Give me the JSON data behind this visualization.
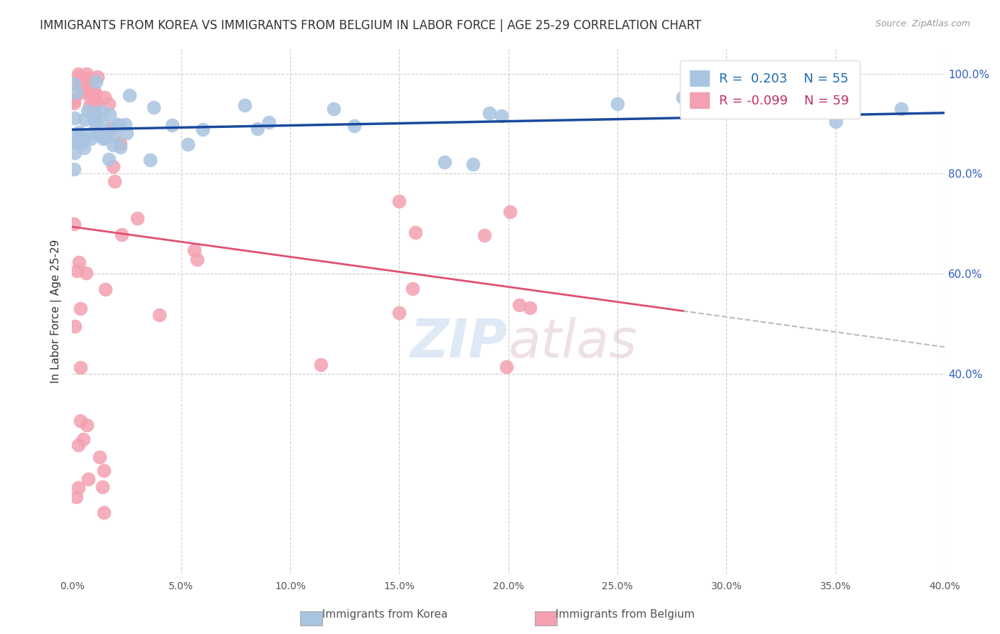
{
  "title": "IMMIGRANTS FROM KOREA VS IMMIGRANTS FROM BELGIUM IN LABOR FORCE | AGE 25-29 CORRELATION CHART",
  "source": "Source: ZipAtlas.com",
  "ylabel": "In Labor Force | Age 25-29",
  "xlim": [
    0.0,
    0.4
  ],
  "ylim": [
    0.0,
    1.05
  ],
  "xtick_labels": [
    "0.0%",
    "5.0%",
    "10.0%",
    "15.0%",
    "20.0%",
    "25.0%",
    "30.0%",
    "35.0%",
    "40.0%"
  ],
  "xtick_vals": [
    0.0,
    0.05,
    0.1,
    0.15,
    0.2,
    0.25,
    0.3,
    0.35,
    0.4
  ],
  "ytick_labels_right": [
    "100.0%",
    "80.0%",
    "60.0%",
    "40.0%"
  ],
  "ytick_vals_right": [
    1.0,
    0.8,
    0.6,
    0.4
  ],
  "legend_korea_r": "0.203",
  "legend_korea_n": "55",
  "legend_belgium_r": "-0.099",
  "legend_belgium_n": "59",
  "korea_color": "#a8c4e0",
  "belgium_color": "#f4a0b0",
  "korea_line_color": "#1a4a9e",
  "belgium_line_color": "#e05070",
  "background_color": "#ffffff"
}
